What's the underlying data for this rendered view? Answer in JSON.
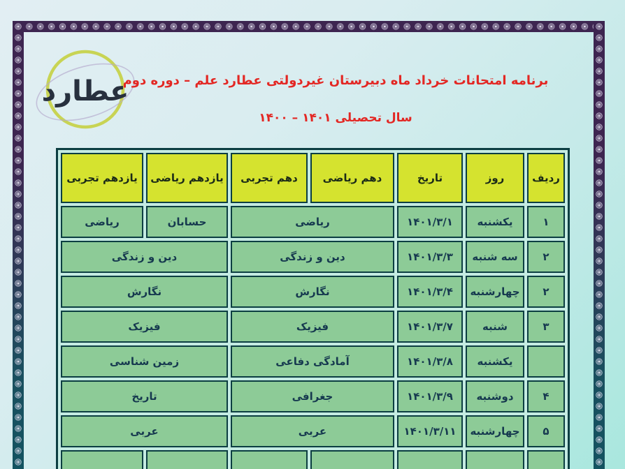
{
  "title": {
    "line1": "برنامه امتحانات خرداد ماه دبیرستان غیردولتی عطارد علم – دوره دوم",
    "line2": "سال تحصیلی ۱۴۰۱ – ۱۴۰۰"
  },
  "logo": {
    "text": "عطارد"
  },
  "colors": {
    "title_red": "#e32723",
    "header_cell_bg": "#d5e32f",
    "header_cell_text": "#1b2a18",
    "body_cell_bg": "#8dcb97",
    "body_cell_text": "#16394f",
    "cell_border": "#0c3e42",
    "table_gap": "#c4ebe2",
    "frame_top": "#3d2550",
    "frame_bottom": "#135360",
    "logo_ring": "#c6d24b"
  },
  "table": {
    "headers": [
      {
        "key": "radif",
        "label": "ردیف"
      },
      {
        "key": "day",
        "label": "روز"
      },
      {
        "key": "date",
        "label": "تاریخ"
      },
      {
        "key": "dahom_riazi",
        "label": "دهم ریاضی"
      },
      {
        "key": "dahom_tajrobi",
        "label": "دهم تجربی"
      },
      {
        "key": "yazdahom_riazi",
        "label": "یازدهم ریاضی"
      },
      {
        "key": "yazdahom_tajrobi",
        "label": "یازدهم تجربی"
      }
    ],
    "rows": [
      {
        "radif": "۱",
        "day": "یکشنبه",
        "date": "۱۴۰۱/۳/۱",
        "dahom": {
          "merged": true,
          "value": "ریاضی"
        },
        "yazdahom": {
          "merged": false,
          "riazi": "حسابان",
          "tajrobi": "ریاضی"
        }
      },
      {
        "radif": "۲",
        "day": "سه شنبه",
        "date": "۱۴۰۱/۳/۳",
        "dahom": {
          "merged": true,
          "value": "دین و زندگی"
        },
        "yazdahom": {
          "merged": true,
          "value": "دین و زندگی"
        }
      },
      {
        "radif": "۲",
        "day": "چهارشنبه",
        "date": "۱۴۰۱/۳/۴",
        "dahom": {
          "merged": true,
          "value": "نگارش"
        },
        "yazdahom": {
          "merged": true,
          "value": "نگارش"
        }
      },
      {
        "radif": "۳",
        "day": "شنبه",
        "date": "۱۴۰۱/۳/۷",
        "dahom": {
          "merged": true,
          "value": "فیزیک"
        },
        "yazdahom": {
          "merged": true,
          "value": "فیزیک"
        }
      },
      {
        "radif": "",
        "day": "یکشنبه",
        "date": "۱۴۰۱/۳/۸",
        "dahom": {
          "merged": true,
          "value": "آمادگی دفاعی"
        },
        "yazdahom": {
          "merged": true,
          "value": "زمین شناسی"
        }
      },
      {
        "radif": "۴",
        "day": "دوشنبه",
        "date": "۱۴۰۱/۳/۹",
        "dahom": {
          "merged": true,
          "value": "جغرافی"
        },
        "yazdahom": {
          "merged": true,
          "value": "تاریخ"
        }
      },
      {
        "radif": "۵",
        "day": "چهارشنبه",
        "date": "۱۴۰۱/۳/۱۱",
        "dahom": {
          "merged": true,
          "value": "عربی"
        },
        "yazdahom": {
          "merged": true,
          "value": "عربی"
        }
      },
      {
        "radif": "",
        "day": "",
        "date": "",
        "dahom": {
          "merged": false,
          "riazi": "",
          "tajrobi": ""
        },
        "yazdahom": {
          "merged": false,
          "riazi": "",
          "tajrobi": ""
        }
      }
    ]
  }
}
